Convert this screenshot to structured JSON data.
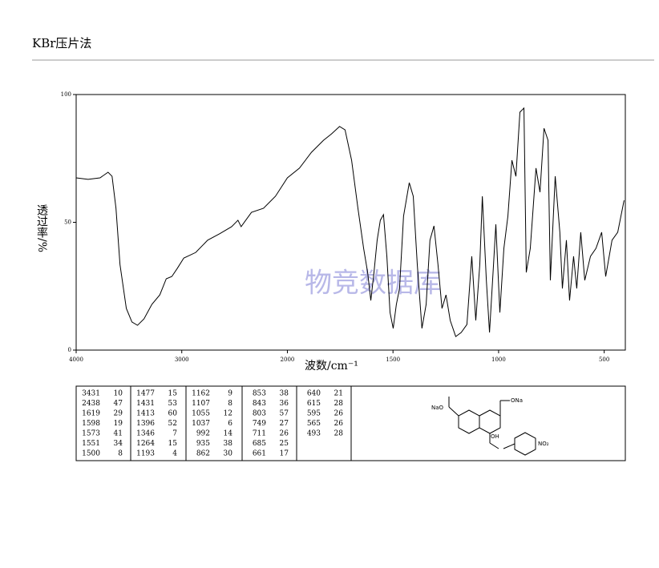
{
  "header": {
    "title": "KBr压片法"
  },
  "chart_data": {
    "type": "line",
    "ylabel": "透过率/%",
    "xlabel": "波数/cm⁻¹",
    "watermark": "物竞数据库",
    "xlim": [
      4000,
      400
    ],
    "xbreak": 2000,
    "xticks": [
      4000,
      3000,
      2000,
      1500,
      1000,
      500
    ],
    "ylim": [
      0,
      100
    ],
    "yticks": [
      0,
      50,
      100
    ],
    "series": [
      {
        "color": "#000000",
        "x": [
          4000,
          3887,
          3774,
          3698,
          3660,
          3623,
          3585,
          3525,
          3472,
          3419,
          3358,
          3283,
          3208,
          3147,
          3094,
          3042,
          2981,
          2868,
          2755,
          2642,
          2528,
          2468,
          2438,
          2340,
          2226,
          2113,
          2000,
          1943,
          1886,
          1829,
          1791,
          1753,
          1727,
          1696,
          1666,
          1639,
          1620,
          1605,
          1590,
          1575,
          1560,
          1545,
          1529,
          1514,
          1499,
          1484,
          1469,
          1450,
          1423,
          1404,
          1385,
          1363,
          1343,
          1325,
          1306,
          1287,
          1268,
          1249,
          1229,
          1203,
          1177,
          1150,
          1127,
          1108,
          1089,
          1077,
          1058,
          1043,
          1024,
          1013,
          994,
          975,
          956,
          937,
          918,
          899,
          880,
          869,
          850,
          823,
          804,
          785,
          766,
          755,
          732,
          710,
          698,
          679,
          664,
          645,
          630,
          611,
          592,
          565,
          539,
          512,
          493,
          463,
          436,
          406
        ],
        "values": [
          67.4,
          66.8,
          67.4,
          69.6,
          68,
          55.5,
          33.5,
          16.3,
          11,
          9.7,
          12.2,
          17.9,
          21.6,
          27.9,
          28.8,
          32,
          36,
          38.2,
          43,
          45.5,
          48.3,
          50.8,
          48.3,
          53.9,
          55.5,
          60.2,
          67.4,
          71.2,
          77.4,
          82.1,
          84.6,
          87.5,
          86.2,
          74.3,
          55.5,
          39.8,
          30.4,
          19.4,
          30.4,
          43,
          50.8,
          53,
          36.7,
          14.7,
          8.5,
          17.9,
          24.1,
          52.4,
          65.5,
          60.2,
          33.5,
          8.5,
          17.9,
          43,
          48.6,
          33.5,
          16.3,
          21.6,
          11.6,
          5.3,
          6.9,
          10,
          36.7,
          11.6,
          33.5,
          60.2,
          27.3,
          6.9,
          33.5,
          49.2,
          14.7,
          39.8,
          52.4,
          74.3,
          68,
          93.1,
          94.7,
          30.4,
          39.8,
          71.2,
          61.8,
          86.8,
          82.1,
          27.3,
          68,
          46.1,
          24.1,
          43,
          19.4,
          36.7,
          24.1,
          46.1,
          27.3,
          36.7,
          39.8,
          46.1,
          28.8,
          43,
          46.1,
          58.6
        ]
      }
    ]
  },
  "peak_table": [
    [
      [
        3431,
        10
      ],
      [
        2438,
        47
      ],
      [
        1619,
        29
      ],
      [
        1598,
        19
      ],
      [
        1573,
        41
      ],
      [
        1551,
        34
      ],
      [
        1500,
        8
      ]
    ],
    [
      [
        1477,
        15
      ],
      [
        1431,
        53
      ],
      [
        1413,
        60
      ],
      [
        1396,
        52
      ],
      [
        1346,
        7
      ],
      [
        1264,
        15
      ],
      [
        1193,
        4
      ]
    ],
    [
      [
        1162,
        9
      ],
      [
        1107,
        8
      ],
      [
        1055,
        12
      ],
      [
        1037,
        6
      ],
      [
        992,
        14
      ],
      [
        935,
        38
      ],
      [
        862,
        30
      ]
    ],
    [
      [
        853,
        38
      ],
      [
        843,
        36
      ],
      [
        803,
        57
      ],
      [
        749,
        27
      ],
      [
        711,
        26
      ],
      [
        685,
        25
      ],
      [
        661,
        17
      ]
    ],
    [
      [
        640,
        21
      ],
      [
        615,
        28
      ],
      [
        595,
        26
      ],
      [
        565,
        26
      ],
      [
        493,
        28
      ]
    ]
  ],
  "structure": {
    "labels": [
      "NaO",
      "ONa",
      "OH",
      "NO₂"
    ]
  }
}
